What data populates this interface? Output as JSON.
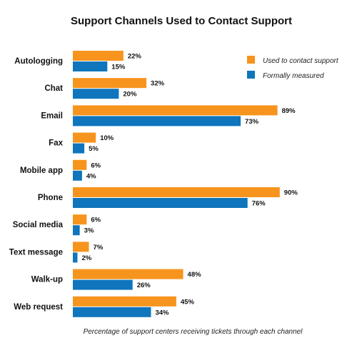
{
  "chart_data": {
    "type": "bar",
    "orientation": "horizontal",
    "title": "Support Channels Used to Contact Support",
    "caption": "Percentage of support centers receiving tickets through each channel",
    "categories": [
      "Autologging",
      "Chat",
      "Email",
      "Fax",
      "Mobile app",
      "Phone",
      "Social media",
      "Text message",
      "Walk-up",
      "Web request"
    ],
    "series": [
      {
        "name": "Used to contact support",
        "color": "#f7941d",
        "values": [
          22,
          32,
          89,
          10,
          6,
          90,
          6,
          7,
          48,
          45
        ],
        "labels": [
          "22%",
          "32%",
          "89%",
          "10%",
          "6%",
          "90%",
          "6%",
          "7%",
          "48%",
          "45%"
        ]
      },
      {
        "name": "Formally measured",
        "color": "#0f75bc",
        "values": [
          15,
          20,
          73,
          5,
          4,
          76,
          3,
          2,
          26,
          34
        ],
        "labels": [
          "15%",
          "20%",
          "73%",
          "5%",
          "4%",
          "76%",
          "3%",
          "2%",
          "26%",
          "34%"
        ]
      }
    ],
    "xlim": [
      0,
      100
    ],
    "grid": false,
    "legend_position": "top-right"
  }
}
